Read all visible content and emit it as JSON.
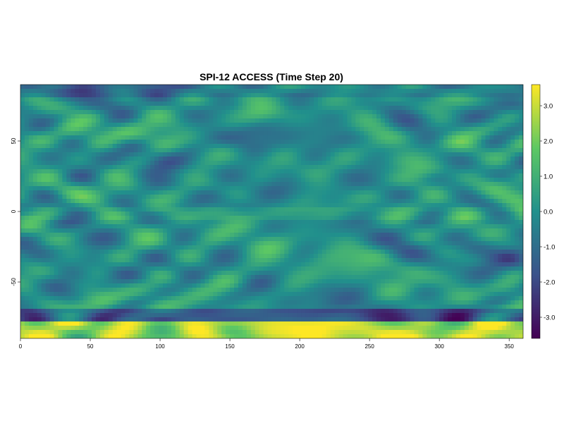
{
  "chart_data": {
    "type": "heatmap",
    "title": "SPI-12 ACCESS (Time Step 20)",
    "xlabel": "",
    "ylabel": "",
    "xlim": [
      0,
      360
    ],
    "ylim": [
      -90,
      90
    ],
    "x_ticks": [
      "0",
      "50",
      "100",
      "150",
      "200",
      "250",
      "300",
      "350"
    ],
    "y_ticks": [
      "-50",
      "0",
      "50"
    ],
    "colorbar": {
      "range": [
        -3.6,
        3.6
      ],
      "ticks": [
        "3.0",
        "2.0",
        "1.0",
        "0.0",
        "-1.0",
        "-2.0",
        "-3.0"
      ],
      "colormap": "viridis",
      "colors": [
        "#440154",
        "#3b528b",
        "#21908c",
        "#5dc863",
        "#fde725"
      ]
    },
    "grid": false,
    "legend": "right"
  }
}
